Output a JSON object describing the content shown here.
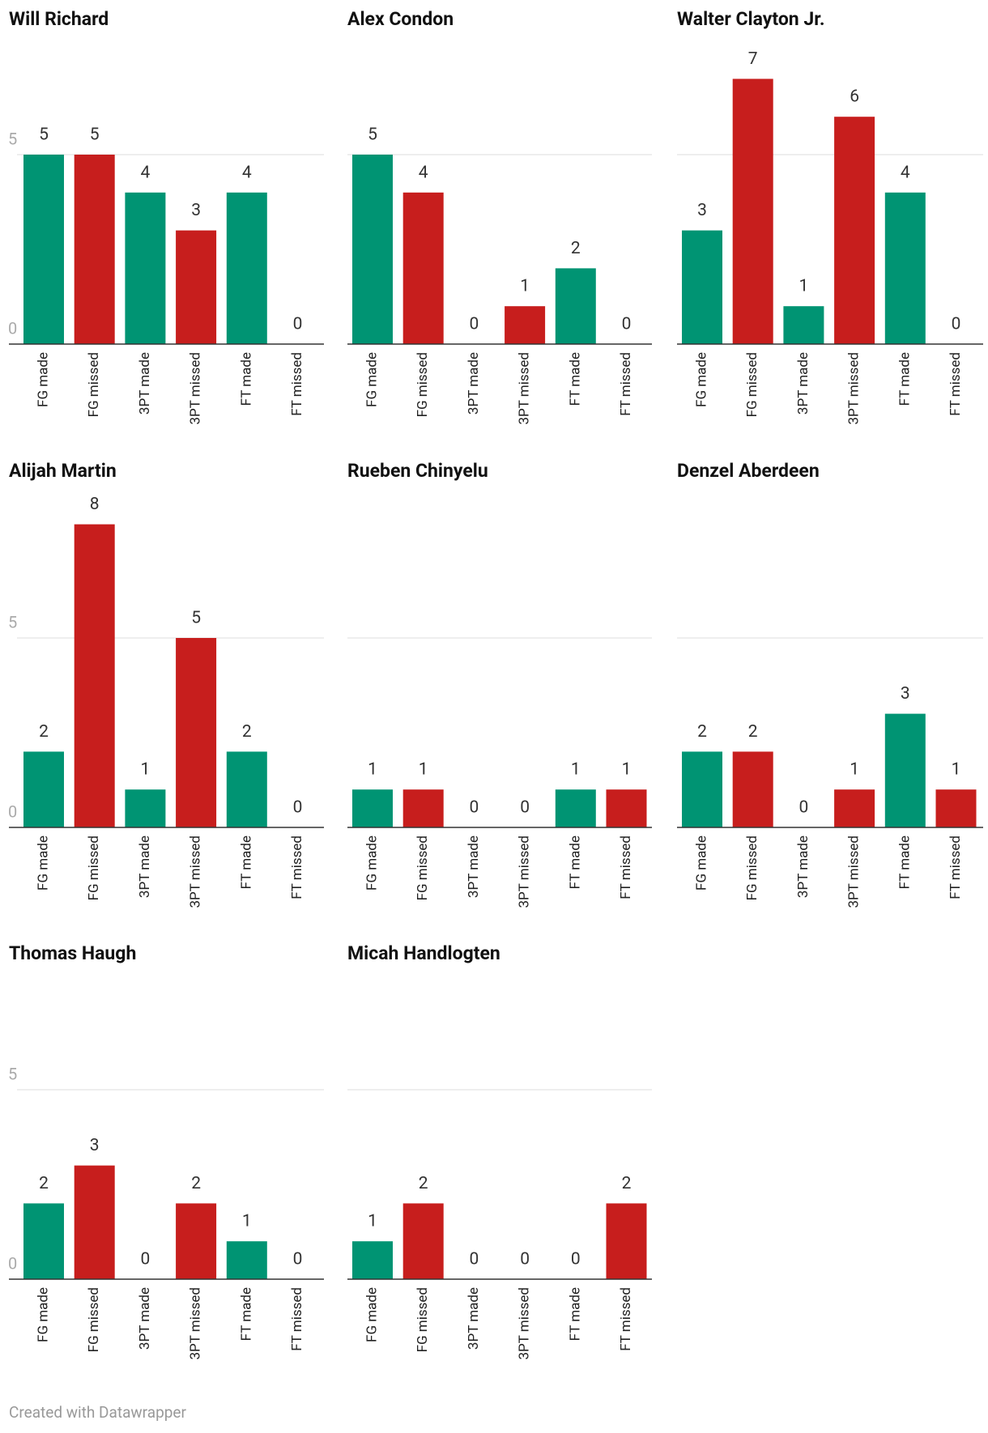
{
  "chart_data": [
    {
      "type": "bar",
      "title": "Will Richard",
      "categories": [
        "FG made",
        "FG missed",
        "3PT made",
        "3PT missed",
        "FT made",
        "FT missed"
      ],
      "values": [
        5,
        5,
        4,
        3,
        4,
        0
      ],
      "colors": [
        "#009473",
        "#c71e1d",
        "#009473",
        "#c71e1d",
        "#009473",
        "#c71e1d"
      ],
      "ylim": [
        0,
        8
      ],
      "yticks": [
        0,
        5
      ],
      "grid": true
    },
    {
      "type": "bar",
      "title": "Alex Condon",
      "categories": [
        "FG made",
        "FG missed",
        "3PT made",
        "3PT missed",
        "FT made",
        "FT missed"
      ],
      "values": [
        5,
        4,
        0,
        1,
        2,
        0
      ],
      "colors": [
        "#009473",
        "#c71e1d",
        "#009473",
        "#c71e1d",
        "#009473",
        "#c71e1d"
      ],
      "ylim": [
        0,
        8
      ],
      "yticks": [
        0,
        5
      ],
      "grid": true
    },
    {
      "type": "bar",
      "title": "Walter Clayton Jr.",
      "categories": [
        "FG made",
        "FG missed",
        "3PT made",
        "3PT missed",
        "FT made",
        "FT missed"
      ],
      "values": [
        3,
        7,
        1,
        6,
        4,
        0
      ],
      "colors": [
        "#009473",
        "#c71e1d",
        "#009473",
        "#c71e1d",
        "#009473",
        "#c71e1d"
      ],
      "ylim": [
        0,
        8
      ],
      "yticks": [
        0,
        5
      ],
      "grid": true
    },
    {
      "type": "bar",
      "title": "Alijah Martin",
      "categories": [
        "FG made",
        "FG missed",
        "3PT made",
        "3PT missed",
        "FT made",
        "FT missed"
      ],
      "values": [
        2,
        8,
        1,
        5,
        2,
        0
      ],
      "colors": [
        "#009473",
        "#c71e1d",
        "#009473",
        "#c71e1d",
        "#009473",
        "#c71e1d"
      ],
      "ylim": [
        0,
        8
      ],
      "yticks": [
        0,
        5
      ],
      "grid": true
    },
    {
      "type": "bar",
      "title": "Rueben Chinyelu",
      "categories": [
        "FG made",
        "FG missed",
        "3PT made",
        "3PT missed",
        "FT made",
        "FT missed"
      ],
      "values": [
        1,
        1,
        0,
        0,
        1,
        1
      ],
      "colors": [
        "#009473",
        "#c71e1d",
        "#009473",
        "#c71e1d",
        "#009473",
        "#c71e1d"
      ],
      "ylim": [
        0,
        8
      ],
      "yticks": [
        0,
        5
      ],
      "grid": true
    },
    {
      "type": "bar",
      "title": "Denzel Aberdeen",
      "categories": [
        "FG made",
        "FG missed",
        "3PT made",
        "3PT missed",
        "FT made",
        "FT missed"
      ],
      "values": [
        2,
        2,
        0,
        1,
        3,
        1
      ],
      "colors": [
        "#009473",
        "#c71e1d",
        "#009473",
        "#c71e1d",
        "#009473",
        "#c71e1d"
      ],
      "ylim": [
        0,
        8
      ],
      "yticks": [
        0,
        5
      ],
      "grid": true
    },
    {
      "type": "bar",
      "title": "Thomas Haugh",
      "categories": [
        "FG made",
        "FG missed",
        "3PT made",
        "3PT missed",
        "FT made",
        "FT missed"
      ],
      "values": [
        2,
        3,
        0,
        2,
        1,
        0
      ],
      "colors": [
        "#009473",
        "#c71e1d",
        "#009473",
        "#c71e1d",
        "#009473",
        "#c71e1d"
      ],
      "ylim": [
        0,
        8
      ],
      "yticks": [
        0,
        5
      ],
      "grid": true
    },
    {
      "type": "bar",
      "title": "Micah Handlogten",
      "categories": [
        "FG made",
        "FG missed",
        "3PT made",
        "3PT missed",
        "FT made",
        "FT missed"
      ],
      "values": [
        1,
        2,
        0,
        0,
        0,
        2
      ],
      "colors": [
        "#009473",
        "#c71e1d",
        "#009473",
        "#c71e1d",
        "#009473",
        "#c71e1d"
      ],
      "ylim": [
        0,
        8
      ],
      "yticks": [
        0,
        5
      ],
      "grid": true
    }
  ],
  "credit": "Created with Datawrapper"
}
